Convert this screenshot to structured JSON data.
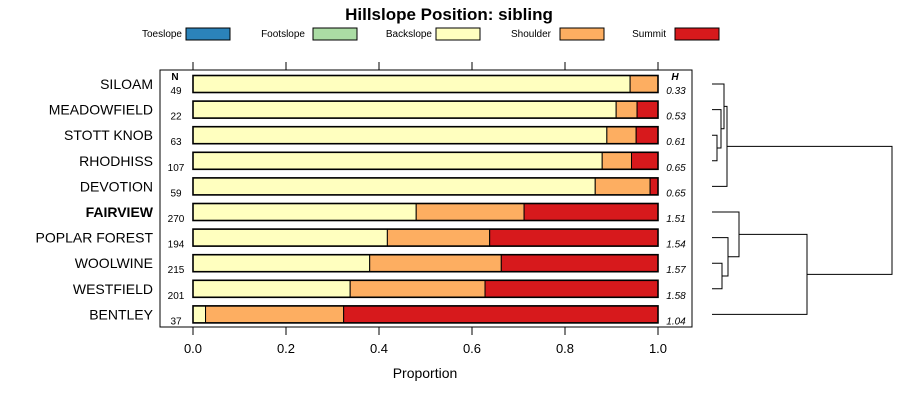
{
  "chart_data": {
    "type": "bar",
    "orientation": "horizontal",
    "stacked": true,
    "title": "Hillslope Position: sibling",
    "xlabel": "Proportion",
    "xlim": [
      0,
      1
    ],
    "xticks": [
      "0.0",
      "0.2",
      "0.4",
      "0.6",
      "0.8",
      "1.0"
    ],
    "n_header": "N",
    "h_header": "H",
    "legend_position": "top",
    "legend": [
      {
        "name": "Toeslope",
        "color": "#2B83BA"
      },
      {
        "name": "Footslope",
        "color": "#ABDDA4"
      },
      {
        "name": "Backslope",
        "color": "#FFFFBF"
      },
      {
        "name": "Shoulder",
        "color": "#FDAE61"
      },
      {
        "name": "Summit",
        "color": "#D7191C"
      }
    ],
    "categories": [
      "SILOAM",
      "MEADOWFIELD",
      "STOTT KNOB",
      "RHODHISS",
      "DEVOTION",
      "FAIRVIEW",
      "POPLAR FOREST",
      "WOOLWINE",
      "WESTFIELD",
      "BENTLEY"
    ],
    "highlighted": "FAIRVIEW",
    "n": [
      "49",
      "22",
      "63",
      "107",
      "59",
      "270",
      "194",
      "215",
      "201",
      "37"
    ],
    "h": [
      "0.33",
      "0.53",
      "0.61",
      "0.65",
      "0.65",
      "1.51",
      "1.54",
      "1.57",
      "1.58",
      "1.04"
    ],
    "series": [
      {
        "name": "Toeslope",
        "values": [
          0,
          0,
          0,
          0,
          0,
          0,
          0,
          0,
          0,
          0
        ]
      },
      {
        "name": "Footslope",
        "values": [
          0,
          0,
          0,
          0,
          0,
          0,
          0,
          0,
          0,
          0
        ]
      },
      {
        "name": "Backslope",
        "values": [
          0.94,
          0.91,
          0.89,
          0.88,
          0.865,
          0.48,
          0.418,
          0.38,
          0.338,
          0.027
        ]
      },
      {
        "name": "Shoulder",
        "values": [
          0.06,
          0.045,
          0.063,
          0.063,
          0.118,
          0.232,
          0.22,
          0.283,
          0.29,
          0.297
        ]
      },
      {
        "name": "Summit",
        "values": [
          0,
          0.045,
          0.047,
          0.057,
          0.017,
          0.288,
          0.362,
          0.337,
          0.372,
          0.676
        ]
      }
    ],
    "dendrogram": true
  }
}
